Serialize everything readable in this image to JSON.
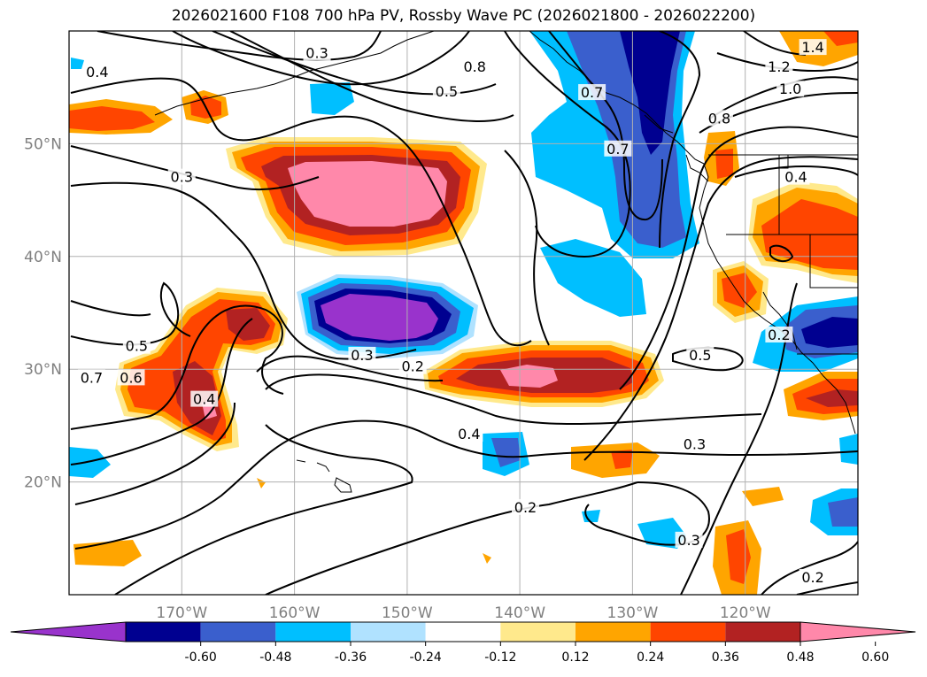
{
  "title": "2026021600 F108 700 hPa PV, Rossby Wave PC (2026021800 - 2026022200)",
  "lat_ticks": [
    {
      "value": 50,
      "label": "50°N"
    },
    {
      "value": 40,
      "label": "40°N"
    },
    {
      "value": 30,
      "label": "30°N"
    },
    {
      "value": 20,
      "label": "20°N"
    }
  ],
  "lon_ticks": [
    {
      "value": -170,
      "label": "170°W"
    },
    {
      "value": -160,
      "label": "160°W"
    },
    {
      "value": -150,
      "label": "150°W"
    },
    {
      "value": -140,
      "label": "140°W"
    },
    {
      "value": -130,
      "label": "130°W"
    },
    {
      "value": -120,
      "label": "120°W"
    }
  ],
  "map_extent": {
    "lon": [
      -180,
      -110
    ],
    "lat": [
      10,
      60
    ]
  },
  "colorbar": {
    "levels": [
      "-0.60",
      "-0.48",
      "-0.36",
      "-0.24",
      "-0.12",
      "0.12",
      "0.24",
      "0.36",
      "0.48",
      "0.60"
    ],
    "colors": [
      "#9933cc",
      "#000090",
      "#3a5fcd",
      "#00bfff",
      "#b0e2ff",
      "#ffffff",
      "#ffe98c",
      "#ffa500",
      "#ff4500",
      "#b22222",
      "#ff88aa"
    ]
  },
  "contour_labels": [
    {
      "text": "0.3",
      "lon": -158,
      "lat": 58
    },
    {
      "text": "0.4",
      "lon": -177.5,
      "lat": 56.3
    },
    {
      "text": "0.8",
      "lon": -144,
      "lat": 56.8
    },
    {
      "text": "0.5",
      "lon": -146.5,
      "lat": 54.6
    },
    {
      "text": "0.7",
      "lon": -133.6,
      "lat": 54.5
    },
    {
      "text": "0.7",
      "lon": -131.3,
      "lat": 49.5
    },
    {
      "text": "1.4",
      "lon": -114,
      "lat": 58.5
    },
    {
      "text": "1.2",
      "lon": -117,
      "lat": 56.8
    },
    {
      "text": "1.0",
      "lon": -116,
      "lat": 54.8
    },
    {
      "text": "0.8",
      "lon": -122.3,
      "lat": 52.2
    },
    {
      "text": "0.4",
      "lon": -115.5,
      "lat": 47
    },
    {
      "text": "0.3",
      "lon": -170,
      "lat": 47
    },
    {
      "text": "0.3",
      "lon": -154,
      "lat": 31.2
    },
    {
      "text": "0.2",
      "lon": -149.5,
      "lat": 30.2
    },
    {
      "text": "0.5",
      "lon": -174,
      "lat": 32
    },
    {
      "text": "0.6",
      "lon": -174.5,
      "lat": 29.2
    },
    {
      "text": "0.7",
      "lon": -178,
      "lat": 29.2
    },
    {
      "text": "0.4",
      "lon": -168,
      "lat": 27.3
    },
    {
      "text": "0.5",
      "lon": -124,
      "lat": 31.2
    },
    {
      "text": "0.2",
      "lon": -117,
      "lat": 33
    },
    {
      "text": "0.4",
      "lon": -144.5,
      "lat": 24.2
    },
    {
      "text": "0.3",
      "lon": -124.5,
      "lat": 23.3
    },
    {
      "text": "0.2",
      "lon": -139.5,
      "lat": 17.7
    },
    {
      "text": "0.3",
      "lon": -125,
      "lat": 14.8
    },
    {
      "text": "0.2",
      "lon": -114,
      "lat": 11.5
    }
  ]
}
